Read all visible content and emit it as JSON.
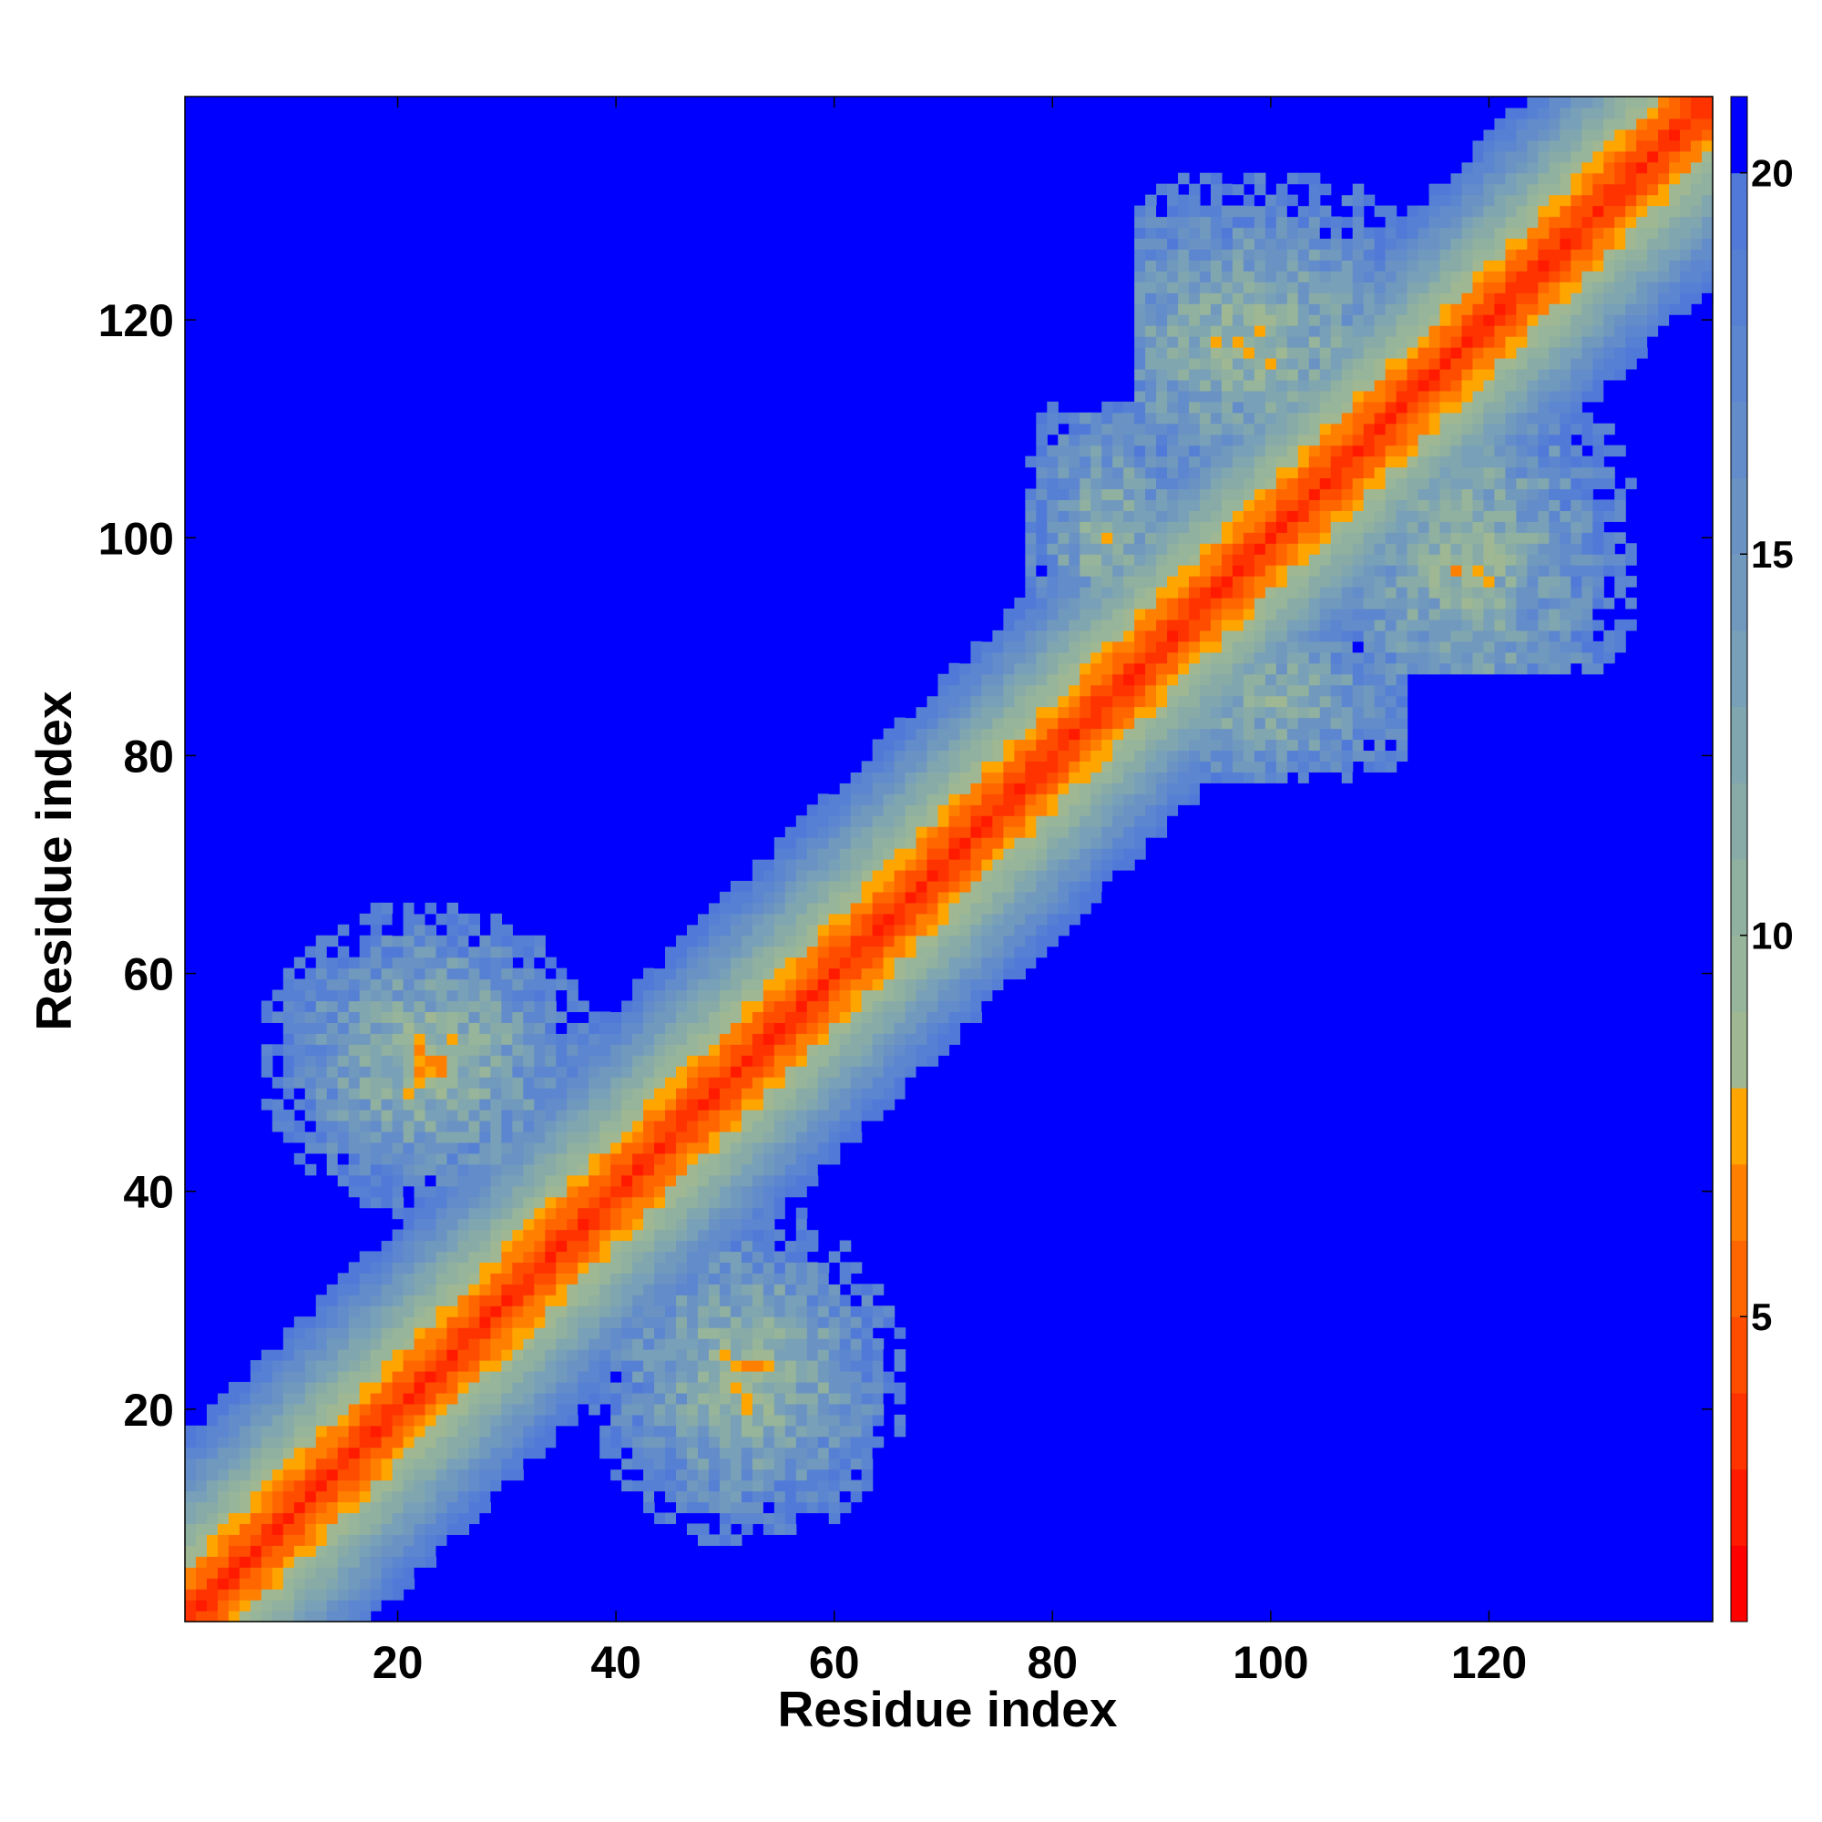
{
  "chart_data": {
    "type": "heatmap",
    "title": "",
    "xlabel": "Residue index",
    "ylabel": "Residue index",
    "n_residues": 140,
    "xlim": [
      1,
      140
    ],
    "ylim": [
      1,
      140
    ],
    "x_ticks": [
      20,
      40,
      60,
      80,
      100,
      120
    ],
    "y_ticks": [
      20,
      40,
      60,
      80,
      100,
      120
    ],
    "x_tick_labels": [
      "20",
      "40",
      "60",
      "80",
      "100",
      "120"
    ],
    "y_tick_labels": [
      "20",
      "40",
      "60",
      "80",
      "100",
      "120"
    ],
    "colorbar": {
      "range": [
        1,
        21
      ],
      "ticks": [
        5,
        10,
        15,
        20
      ],
      "tick_labels": [
        "5",
        "10",
        "15",
        "20"
      ],
      "levels": [
        {
          "max": 2,
          "color": "#ff0000"
        },
        {
          "max": 3,
          "color": "#ff1a00"
        },
        {
          "max": 4,
          "color": "#ff3300"
        },
        {
          "max": 5,
          "color": "#ff4d00"
        },
        {
          "max": 6,
          "color": "#ff6600"
        },
        {
          "max": 7,
          "color": "#ff8000"
        },
        {
          "max": 8,
          "color": "#ffa500"
        },
        {
          "max": 9,
          "color": "#9fb792"
        },
        {
          "max": 10,
          "color": "#97b59a"
        },
        {
          "max": 11,
          "color": "#90b0a0"
        },
        {
          "max": 12,
          "color": "#88aba8"
        },
        {
          "max": 13,
          "color": "#80a6b0"
        },
        {
          "max": 14,
          "color": "#78a0b8"
        },
        {
          "max": 15,
          "color": "#7199be"
        },
        {
          "max": 16,
          "color": "#6a93c4"
        },
        {
          "max": 17,
          "color": "#638cca"
        },
        {
          "max": 18,
          "color": "#5c86cf"
        },
        {
          "max": 19,
          "color": "#5680d3"
        },
        {
          "max": 20,
          "color": "#517ad8"
        },
        {
          "max": 21,
          "color": "#0000ff"
        }
      ]
    },
    "distance_model": {
      "diagonal_band_base": 3.0,
      "diagonal_band_slope": 1.0,
      "cutoff": 20.5,
      "contact_regions": [
        {
          "name": "lower-left hairpin",
          "i_center": 23,
          "j_center": 52,
          "i_range": [
            8,
            40
          ],
          "j_range": [
            36,
            66
          ],
          "min_dist": 8
        },
        {
          "name": "lower-left hairpin mirror",
          "i_center": 52,
          "j_center": 23,
          "i_range": [
            36,
            66
          ],
          "j_range": [
            8,
            40
          ],
          "min_dist": 8
        },
        {
          "name": "upper cluster",
          "i_center": 98,
          "j_center": 118,
          "i_range": [
            88,
            130
          ],
          "j_range": [
            106,
            138
          ],
          "min_dist": 9
        },
        {
          "name": "upper cluster mirror",
          "i_center": 118,
          "j_center": 98,
          "i_range": [
            106,
            138
          ],
          "j_range": [
            88,
            130
          ],
          "min_dist": 9
        },
        {
          "name": "mid-upper cross",
          "i_center": 85,
          "j_center": 100,
          "i_range": [
            78,
            96
          ],
          "j_range": [
            80,
            112
          ],
          "min_dist": 10
        },
        {
          "name": "mid-upper cross mirror",
          "i_center": 100,
          "j_center": 85,
          "i_range": [
            80,
            112
          ],
          "j_range": [
            78,
            96
          ],
          "min_dist": 10
        }
      ]
    }
  }
}
